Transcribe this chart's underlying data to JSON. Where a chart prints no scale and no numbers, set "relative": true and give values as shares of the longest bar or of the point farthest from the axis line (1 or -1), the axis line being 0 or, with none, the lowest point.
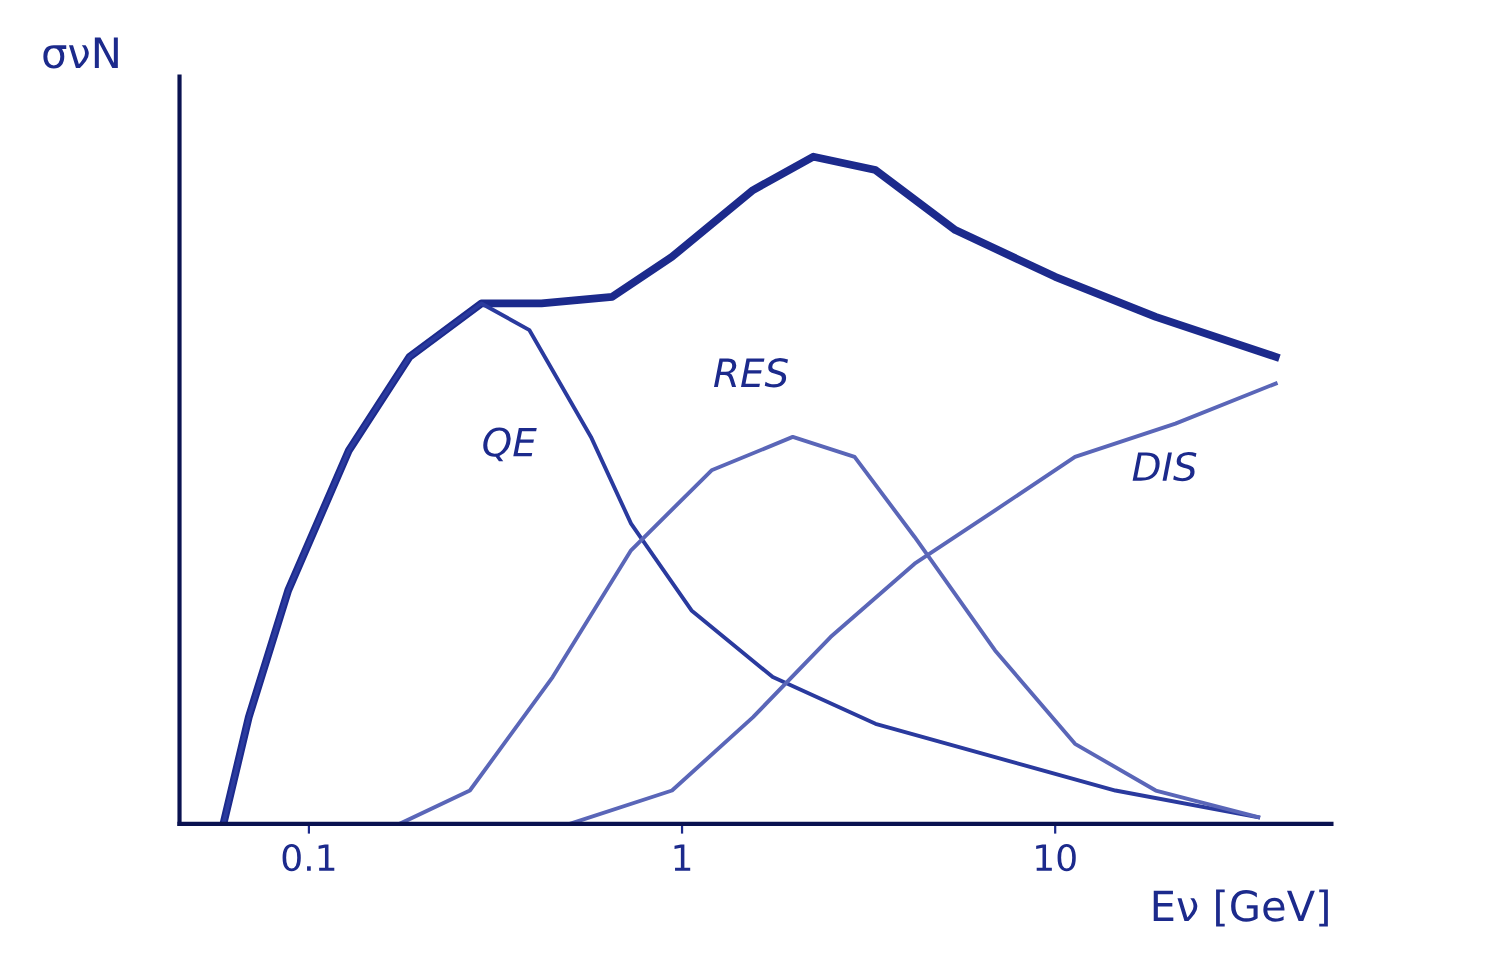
{
  "chart_data": {
    "type": "line",
    "relative": true,
    "log": "x",
    "xlabel": "Eν [GeV]",
    "ylabel": "σνN",
    "xlim": [
      0.045,
      55
    ],
    "xticks": [
      0.1,
      1,
      10
    ],
    "tick_labels": "x",
    "grid": false,
    "legend": false,
    "marker": "none",
    "line_style": "solid",
    "series": [
      {
        "color": "#1c2a8c",
        "x": [
          0.059,
          0.069,
          0.088,
          0.128,
          0.186,
          0.29,
          0.42,
          0.65,
          0.94,
          1.55,
          2.25,
          3.3,
          5.4,
          10,
          18.6,
          39
        ],
        "values": [
          0,
          0.16,
          0.35,
          0.56,
          0.7,
          0.78,
          0.78,
          0.79,
          0.85,
          0.95,
          1.0,
          0.98,
          0.89,
          0.82,
          0.76,
          0.7
        ]
      },
      {
        "name": "QE",
        "color": "#2a3a9e",
        "x": [
          0.059,
          0.069,
          0.088,
          0.128,
          0.186,
          0.29,
          0.39,
          0.57,
          0.73,
          1.06,
          1.75,
          3.3,
          6.9,
          14.5,
          35
        ],
        "values": [
          0,
          0.16,
          0.35,
          0.56,
          0.7,
          0.78,
          0.74,
          0.58,
          0.45,
          0.32,
          0.22,
          0.15,
          0.1,
          0.05,
          0.01
        ]
      },
      {
        "name": "RES",
        "color": "#5a66b8",
        "x": [
          0.175,
          0.27,
          0.45,
          0.73,
          1.2,
          1.98,
          2.9,
          4.2,
          6.9,
          11.3,
          18.6,
          35
        ],
        "values": [
          0,
          0.05,
          0.22,
          0.41,
          0.53,
          0.58,
          0.55,
          0.43,
          0.26,
          0.12,
          0.05,
          0.01
        ]
      },
      {
        "name": "DIS",
        "color": "#5a66b8",
        "x": [
          0.5,
          0.94,
          1.55,
          2.5,
          4.2,
          6.9,
          11.3,
          21,
          39
        ],
        "values": [
          0,
          0.05,
          0.16,
          0.28,
          0.39,
          0.47,
          0.55,
          0.6,
          0.66
        ]
      }
    ]
  }
}
